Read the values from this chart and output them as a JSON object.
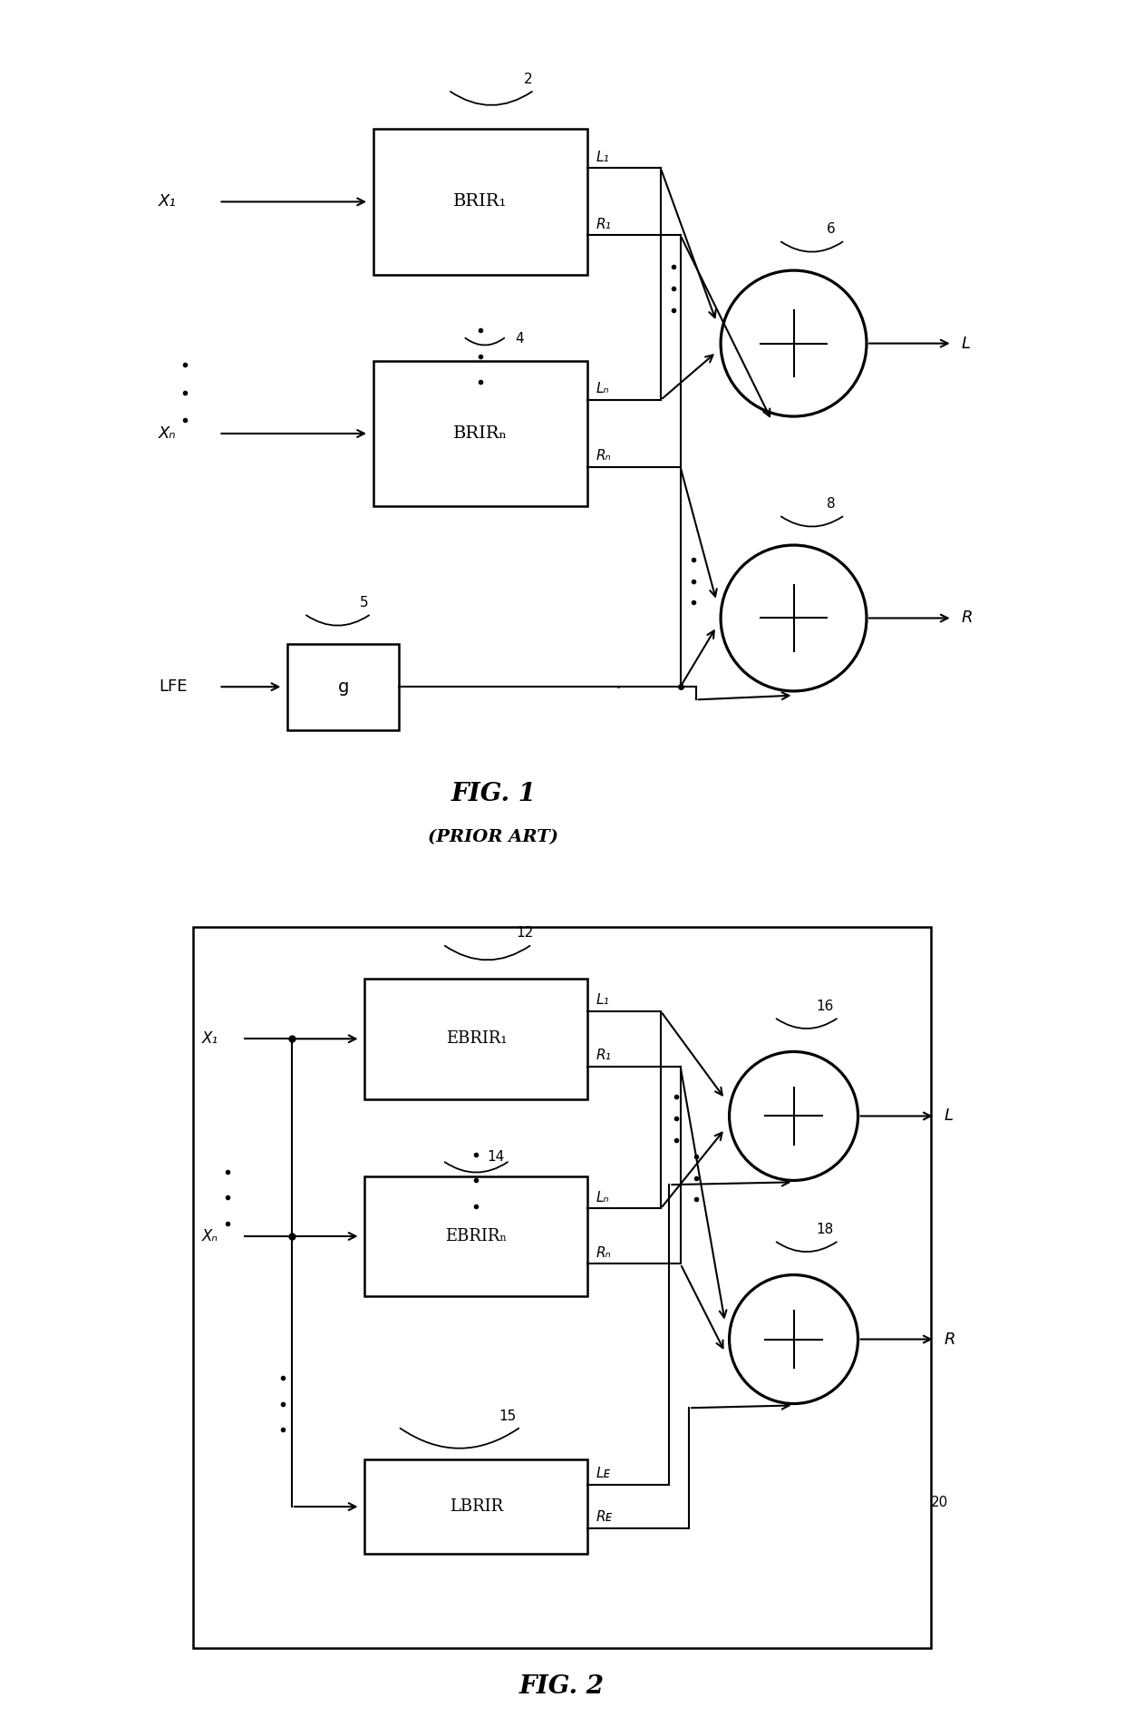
{
  "fig_width": 12.4,
  "fig_height": 18.93,
  "bg_color": "#ffffff",
  "fig1": {
    "title": "FIG. 1",
    "subtitle": "(PRIOR ART)",
    "label2": "2",
    "label4": "4",
    "label5": "5",
    "label6": "6",
    "label8": "8",
    "brir1_text": "BRIR₁",
    "brirN_text": "BRIRₙ",
    "g_text": "g",
    "x1_text": "X₁",
    "xN_text": "Xₙ",
    "lfe_text": "LFE",
    "L_text": "L",
    "R_text": "R",
    "L1_text": "L₁",
    "R1_text": "R₁",
    "LN_text": "Lₙ",
    "RN_text": "Rₙ"
  },
  "fig2": {
    "title": "FIG. 2",
    "label12": "12",
    "label14": "14",
    "label15": "15",
    "label16": "16",
    "label18": "18",
    "label20": "20",
    "ebrir1_text": "EBRIR₁",
    "ebrirN_text": "EBRIRₙ",
    "lbrir_text": "LBRIR",
    "x1_text": "X₁",
    "xN_text": "Xₙ",
    "L_text": "L",
    "R_text": "R",
    "L1_text": "L₁",
    "R1_text": "R₁",
    "LN_text": "Lₙ",
    "RN_text": "Rₙ",
    "LE_text": "Lᴇ",
    "RE_text": "Rᴇ"
  }
}
